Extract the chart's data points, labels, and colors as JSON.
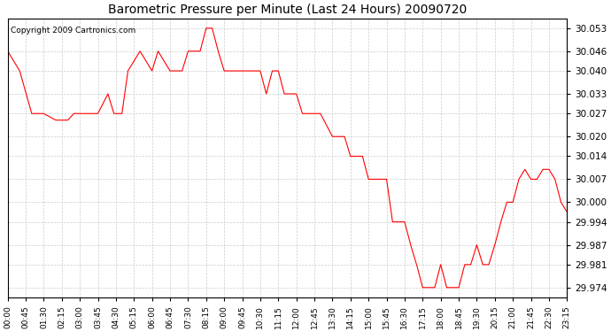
{
  "title": "Barometric Pressure per Minute (Last 24 Hours) 20090720",
  "copyright_text": "Copyright 2009 Cartronics.com",
  "line_color": "#ff0000",
  "background_color": "#ffffff",
  "grid_color": "#cccccc",
  "y_ticks": [
    29.974,
    29.981,
    29.987,
    29.994,
    30.0,
    30.007,
    30.014,
    30.02,
    30.027,
    30.033,
    30.04,
    30.046,
    30.053
  ],
  "x_tick_labels": [
    "00:00",
    "00:45",
    "01:30",
    "02:15",
    "03:00",
    "03:45",
    "04:30",
    "05:15",
    "06:00",
    "06:45",
    "07:30",
    "08:15",
    "09:00",
    "09:45",
    "10:30",
    "11:15",
    "12:00",
    "12:45",
    "13:30",
    "14:15",
    "15:00",
    "15:45",
    "16:30",
    "17:15",
    "18:00",
    "18:45",
    "19:30",
    "20:15",
    "21:00",
    "21:45",
    "22:30",
    "23:15"
  ],
  "ylim": [
    29.971,
    30.056
  ],
  "xlim": [
    0,
    1395
  ]
}
